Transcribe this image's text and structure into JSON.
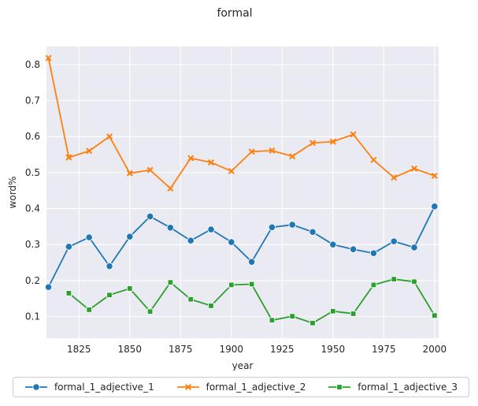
{
  "chart_data": {
    "type": "line",
    "title": "formal",
    "xlabel": "year",
    "ylabel": "word%",
    "xlim": [
      1809,
      2002
    ],
    "ylim": [
      0.04,
      0.85
    ],
    "xticks": [
      1825,
      1850,
      1875,
      1900,
      1925,
      1950,
      1975,
      2000
    ],
    "yticks": [
      0.1,
      0.2,
      0.3,
      0.4,
      0.5,
      0.6,
      0.7,
      0.8
    ],
    "grid": true,
    "background": "#eaeaf2",
    "legend_position": "bottom",
    "series": [
      {
        "name": "formal_1_adjective_1",
        "color": "#1f77b4",
        "marker": "circle",
        "x": [
          1810,
          1820,
          1830,
          1840,
          1850,
          1860,
          1870,
          1880,
          1890,
          1900,
          1910,
          1920,
          1930,
          1940,
          1950,
          1960,
          1970,
          1980,
          1990,
          2000
        ],
        "y": [
          0.182,
          0.294,
          0.32,
          0.24,
          0.322,
          0.378,
          0.347,
          0.311,
          0.342,
          0.307,
          0.252,
          0.348,
          0.355,
          0.335,
          0.3,
          0.287,
          0.276,
          0.309,
          0.292,
          0.406
        ]
      },
      {
        "name": "formal_1_adjective_2",
        "color": "#ff7f0e",
        "marker": "x",
        "x": [
          1810,
          1820,
          1830,
          1840,
          1850,
          1860,
          1870,
          1880,
          1890,
          1900,
          1910,
          1920,
          1930,
          1940,
          1950,
          1960,
          1970,
          1980,
          1990,
          2000
        ],
        "y": [
          0.818,
          0.542,
          0.56,
          0.6,
          0.498,
          0.507,
          0.456,
          0.54,
          0.528,
          0.504,
          0.558,
          0.561,
          0.545,
          0.582,
          0.586,
          0.606,
          0.535,
          0.486,
          0.511,
          0.491
        ]
      },
      {
        "name": "formal_1_adjective_3",
        "color": "#2ca02c",
        "marker": "square",
        "x": [
          1820,
          1830,
          1840,
          1850,
          1860,
          1870,
          1880,
          1890,
          1900,
          1910,
          1920,
          1930,
          1940,
          1950,
          1960,
          1970,
          1980,
          1990,
          2000
        ],
        "y": [
          0.165,
          0.119,
          0.16,
          0.178,
          0.114,
          0.195,
          0.148,
          0.13,
          0.188,
          0.19,
          0.09,
          0.101,
          0.082,
          0.115,
          0.108,
          0.188,
          0.204,
          0.197,
          0.103
        ]
      }
    ]
  }
}
